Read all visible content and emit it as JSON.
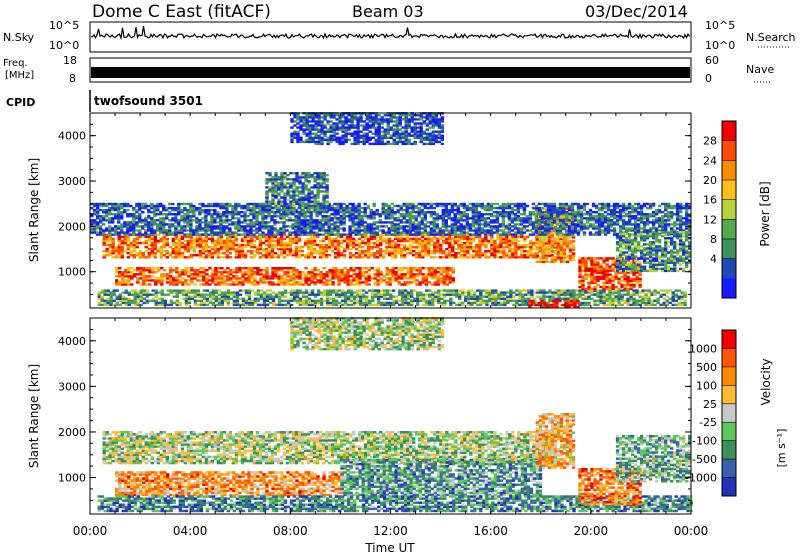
{
  "header": {
    "station": "Dome C East (fitACF)",
    "beam": "Beam 03",
    "date": "03/Dec/2014"
  },
  "top_panels": {
    "nsky_label": "N.Sky",
    "nsky_ticks": [
      "10^5",
      "10^0"
    ],
    "nsearch_label": "N.Search",
    "freq_label_line1": "Freq.",
    "freq_label_line2": "[MHz]",
    "freq_ticks": [
      "18",
      "8"
    ],
    "nave_label": "Nave",
    "nave_ticks": [
      "60",
      "0"
    ],
    "cpid_label": "CPID",
    "cpid_value": "twofsound 3501"
  },
  "chart_data": [
    {
      "type": "heatmap",
      "name": "power",
      "ylabel": "Slant Range [km]",
      "yticks": [
        "4000",
        "3000",
        "2000",
        "1000"
      ],
      "ylim": [
        200,
        4500
      ],
      "xlim": [
        0,
        24
      ],
      "colorbar": {
        "label": "Power [dB]",
        "ticks": [
          "28",
          "24",
          "20",
          "16",
          "12",
          "8",
          "4"
        ],
        "colors": [
          "#1919ff",
          "#1f49b7",
          "#3d8f5c",
          "#58a84e",
          "#b9d23a",
          "#ffc01e",
          "#ff8c00",
          "#ff4a00",
          "#ee0000"
        ]
      },
      "bands": [
        {
          "t0": 0.5,
          "t1": 18.8,
          "r0": 1300,
          "r1": 1800,
          "level": 0.75
        },
        {
          "t0": 1.0,
          "t1": 14.5,
          "r0": 700,
          "r1": 1100,
          "level": 0.8
        },
        {
          "t0": 0.3,
          "t1": 23.8,
          "r0": 250,
          "r1": 600,
          "level": 0.35
        },
        {
          "t0": 17.8,
          "t1": 19.3,
          "r0": 1200,
          "r1": 2400,
          "level": 0.7
        },
        {
          "t0": 19.5,
          "t1": 22.0,
          "r0": 600,
          "r1": 1300,
          "level": 0.85
        },
        {
          "t0": 17.5,
          "t1": 19.5,
          "r0": 200,
          "r1": 350,
          "level": 0.98
        },
        {
          "t0": 0.0,
          "t1": 24.0,
          "r0": 1800,
          "r1": 2500,
          "level": 0.2
        },
        {
          "t0": 21.0,
          "t1": 24.0,
          "r0": 1000,
          "r1": 1900,
          "level": 0.3
        },
        {
          "t0": 7.0,
          "t1": 9.5,
          "r0": 2300,
          "r1": 3200,
          "level": 0.25
        },
        {
          "t0": 8.0,
          "t1": 14.0,
          "r0": 3800,
          "r1": 4500,
          "level": 0.15
        }
      ]
    },
    {
      "type": "heatmap",
      "name": "velocity",
      "ylabel": "Slant Range [km]",
      "xlabel": "Time UT",
      "xticks": [
        "00:00",
        "04:00",
        "08:00",
        "12:00",
        "16:00",
        "20:00",
        "00:00"
      ],
      "yticks": [
        "4000",
        "3000",
        "2000",
        "1000"
      ],
      "ylim": [
        200,
        4500
      ],
      "xlim": [
        0,
        24
      ],
      "colorbar": {
        "label": "Velocity",
        "unit": "[m s⁻¹]",
        "ticks": [
          "1000",
          "500",
          "100",
          "25",
          "-25",
          "-100",
          "-500",
          "-1000"
        ],
        "colors": [
          "#2233bb",
          "#3b5fb0",
          "#3b8f59",
          "#5cc85c",
          "#c8c8c8",
          "#ffbb33",
          "#ff8800",
          "#ff5500",
          "#ee0000"
        ]
      },
      "bands": [
        {
          "t0": 0.5,
          "t1": 18.5,
          "r0": 1300,
          "r1": 2000,
          "level": 0.45
        },
        {
          "t0": 1.0,
          "t1": 10.0,
          "r0": 600,
          "r1": 1100,
          "level": 0.7
        },
        {
          "t0": 10.0,
          "t1": 18.0,
          "r0": 600,
          "r1": 1400,
          "level": 0.3
        },
        {
          "t0": 0.3,
          "t1": 24.0,
          "r0": 250,
          "r1": 600,
          "level": 0.25
        },
        {
          "t0": 17.8,
          "t1": 19.3,
          "r0": 1200,
          "r1": 2400,
          "level": 0.65
        },
        {
          "t0": 19.5,
          "t1": 22.0,
          "r0": 400,
          "r1": 1200,
          "level": 0.75
        },
        {
          "t0": 21.0,
          "t1": 24.0,
          "r0": 900,
          "r1": 1900,
          "level": 0.35
        },
        {
          "t0": 8.0,
          "t1": 14.0,
          "r0": 3800,
          "r1": 4500,
          "level": 0.45
        }
      ]
    }
  ]
}
